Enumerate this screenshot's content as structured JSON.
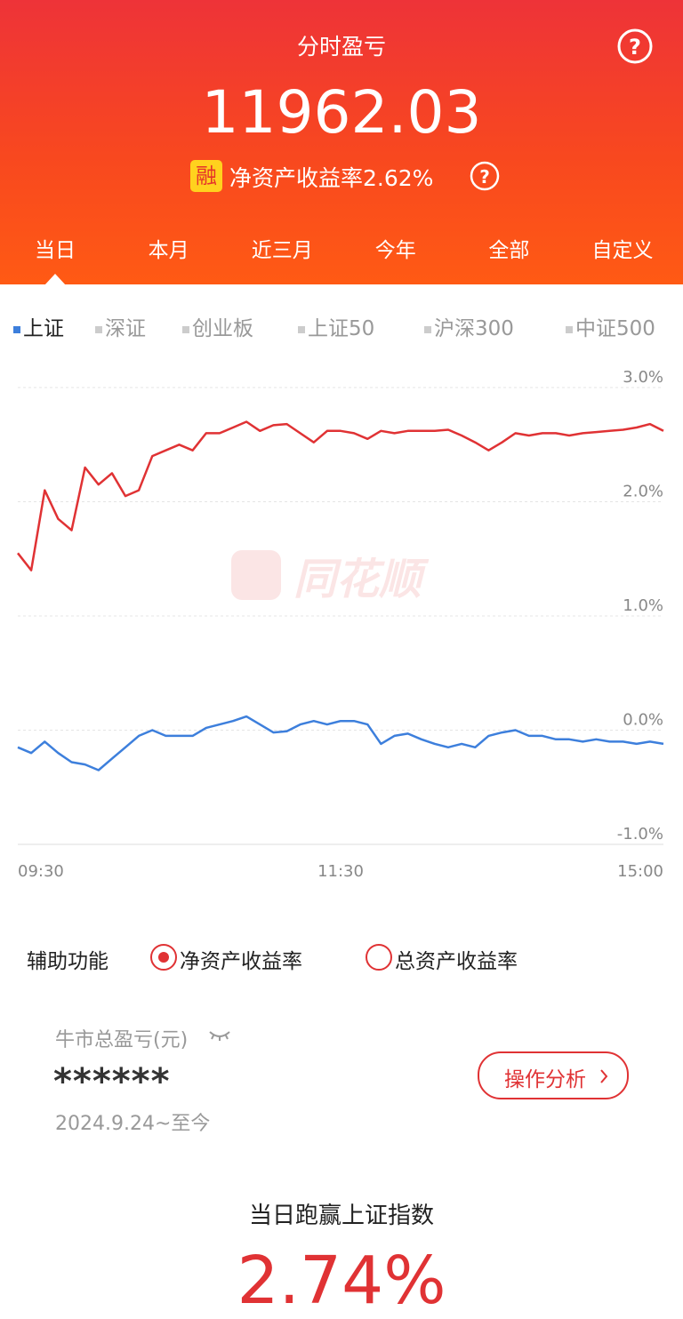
{
  "header": {
    "title": "分时盈亏",
    "amount": "11962.03",
    "badge": "融",
    "roe_label": "净资产收益率2.62%"
  },
  "period_tabs": [
    "当日",
    "本月",
    "近三月",
    "今年",
    "全部",
    "自定义"
  ],
  "index_tabs": [
    "上证",
    "深证",
    "创业板",
    "上证50",
    "沪深300",
    "中证500"
  ],
  "watermark": "同花顺",
  "chart_data": {
    "type": "line",
    "categories": [
      "09:30",
      null,
      null,
      null,
      null,
      null,
      null,
      null,
      null,
      null,
      null,
      null,
      null,
      null,
      null,
      null,
      null,
      null,
      null,
      null,
      null,
      null,
      null,
      null,
      "11:30",
      null,
      null,
      null,
      null,
      null,
      null,
      null,
      null,
      null,
      null,
      null,
      null,
      null,
      null,
      null,
      null,
      null,
      null,
      null,
      null,
      null,
      null,
      null,
      "15:00"
    ],
    "series": [
      {
        "color": "#e03234",
        "values": [
          1.55,
          1.4,
          2.1,
          1.85,
          1.75,
          2.3,
          2.15,
          2.25,
          2.05,
          2.1,
          2.4,
          2.45,
          2.5,
          2.45,
          2.6,
          2.6,
          2.65,
          2.7,
          2.62,
          2.67,
          2.68,
          2.6,
          2.52,
          2.62,
          2.62,
          2.6,
          2.55,
          2.62,
          2.6,
          2.62,
          2.62,
          2.62,
          2.63,
          2.58,
          2.52,
          2.45,
          2.52,
          2.6,
          2.58,
          2.6,
          2.6,
          2.58,
          2.6,
          2.61,
          2.62,
          2.63,
          2.65,
          2.68,
          2.62
        ]
      },
      {
        "color": "#3d7fdc",
        "values": [
          -0.15,
          -0.2,
          -0.1,
          -0.2,
          -0.28,
          -0.3,
          -0.35,
          -0.25,
          -0.15,
          -0.05,
          0,
          -0.05,
          -0.05,
          -0.05,
          0.02,
          0.05,
          0.08,
          0.12,
          0.05,
          -0.02,
          -0.01,
          0.05,
          0.08,
          0.05,
          0.08,
          0.08,
          0.05,
          -0.12,
          -0.05,
          -0.03,
          -0.08,
          -0.12,
          -0.15,
          -0.12,
          -0.15,
          -0.05,
          -0.02,
          0,
          -0.05,
          -0.05,
          -0.08,
          -0.08,
          -0.1,
          -0.08,
          -0.1,
          -0.1,
          -0.12,
          -0.1,
          -0.12
        ]
      }
    ],
    "ylim": [
      -1,
      3
    ],
    "yticks": [
      {
        "value": -1,
        "label": "-1.0%"
      },
      {
        "value": 0,
        "label": "0.0%"
      },
      {
        "value": 1,
        "label": "1.0%"
      },
      {
        "value": 2,
        "label": "2.0%"
      },
      {
        "value": 3,
        "label": "3.0%"
      }
    ],
    "grid": true
  },
  "aux": {
    "label": "辅助功能",
    "options": [
      "净资产收益率",
      "总资产收益率"
    ]
  },
  "summary": {
    "label": "牛市总盈亏(元)",
    "value": "******",
    "period": "2024.9.24~至今",
    "button": "操作分析"
  },
  "outperform": {
    "label": "当日跑赢上证指数",
    "value": "2.74%"
  }
}
